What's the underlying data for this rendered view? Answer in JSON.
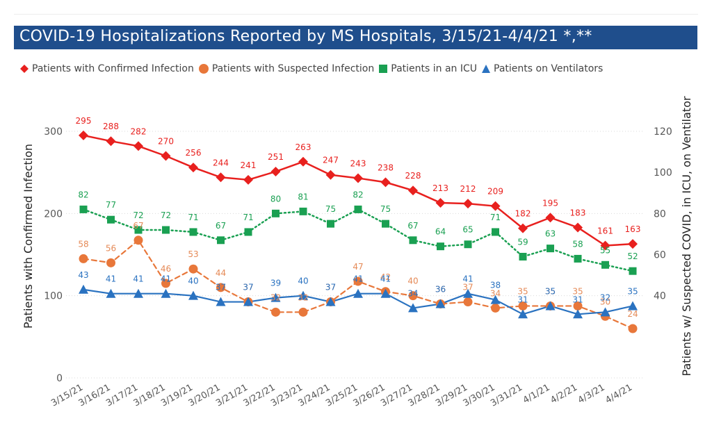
{
  "title": "COVID-19 Hospitalizations Reported by MS Hospitals, 3/15/21-4/4/21 *,**",
  "colors": {
    "title_bg": "#1f4e8c",
    "confirmed": "#e8201e",
    "suspected": "#e8773a",
    "icu": "#1aa052",
    "ventilators": "#2a72c0",
    "suspected_label": "#e58a57"
  },
  "legend": [
    {
      "label": "Patients with Confirmed Infection",
      "marker": "diamond-icon",
      "color": "#e8201e"
    },
    {
      "label": "Patients with Suspected Infection",
      "marker": "circle-icon",
      "color": "#e8773a"
    },
    {
      "label": "Patients in an ICU",
      "marker": "square-icon",
      "color": "#1aa052"
    },
    {
      "label": "Patients on Ventilators",
      "marker": "triangle-icon",
      "color": "#2a72c0"
    }
  ],
  "chart_data": {
    "type": "line",
    "categories": [
      "3/15/21",
      "3/16/21",
      "3/17/21",
      "3/18/21",
      "3/19/21",
      "3/20/21",
      "3/21/21",
      "3/22/21",
      "3/23/21",
      "3/24/21",
      "3/25/21",
      "3/26/21",
      "3/27/21",
      "3/28/21",
      "3/29/21",
      "3/30/21",
      "3/31/21",
      "4/1/21",
      "4/2/21",
      "4/3/21",
      "4/4/21"
    ],
    "ylabel_left": "Patients with Confirmed Infection",
    "ylabel_right": "Patients w/ Suspected COVID, in ICU, on Ventilator",
    "ylim_left": [
      0,
      300
    ],
    "yticks_left": [
      0,
      100,
      200,
      300
    ],
    "ylim_right": [
      0,
      120
    ],
    "yticks_right": [
      40,
      60,
      80,
      100,
      120
    ],
    "grid": "dotted",
    "legend_position": "top",
    "series": [
      {
        "name": "Patients with Confirmed Infection",
        "axis": "left",
        "line": "solid",
        "marker": "diamond",
        "values": [
          295,
          288,
          282,
          270,
          256,
          244,
          241,
          251,
          263,
          247,
          243,
          238,
          228,
          213,
          212,
          209,
          182,
          195,
          183,
          161,
          163
        ]
      },
      {
        "name": "Patients with Suspected Infection",
        "axis": "right",
        "line": "dashed",
        "marker": "circle",
        "values": [
          58,
          56,
          67,
          46,
          53,
          44,
          37,
          32,
          32,
          37,
          47,
          42,
          40,
          36,
          37,
          34,
          35,
          35,
          35,
          30,
          24
        ]
      },
      {
        "name": "Patients in an ICU",
        "axis": "right",
        "line": "dotted",
        "marker": "square",
        "values": [
          82,
          77,
          72,
          72,
          71,
          67,
          71,
          80,
          81,
          75,
          82,
          75,
          67,
          64,
          65,
          71,
          59,
          63,
          58,
          55,
          52
        ]
      },
      {
        "name": "Patients on Ventilators",
        "axis": "right",
        "line": "solid",
        "marker": "triangle",
        "values": [
          43,
          41,
          41,
          41,
          40,
          37,
          37,
          39,
          40,
          37,
          41,
          41,
          34,
          36,
          41,
          38,
          31,
          35,
          31,
          32,
          35
        ]
      }
    ]
  }
}
